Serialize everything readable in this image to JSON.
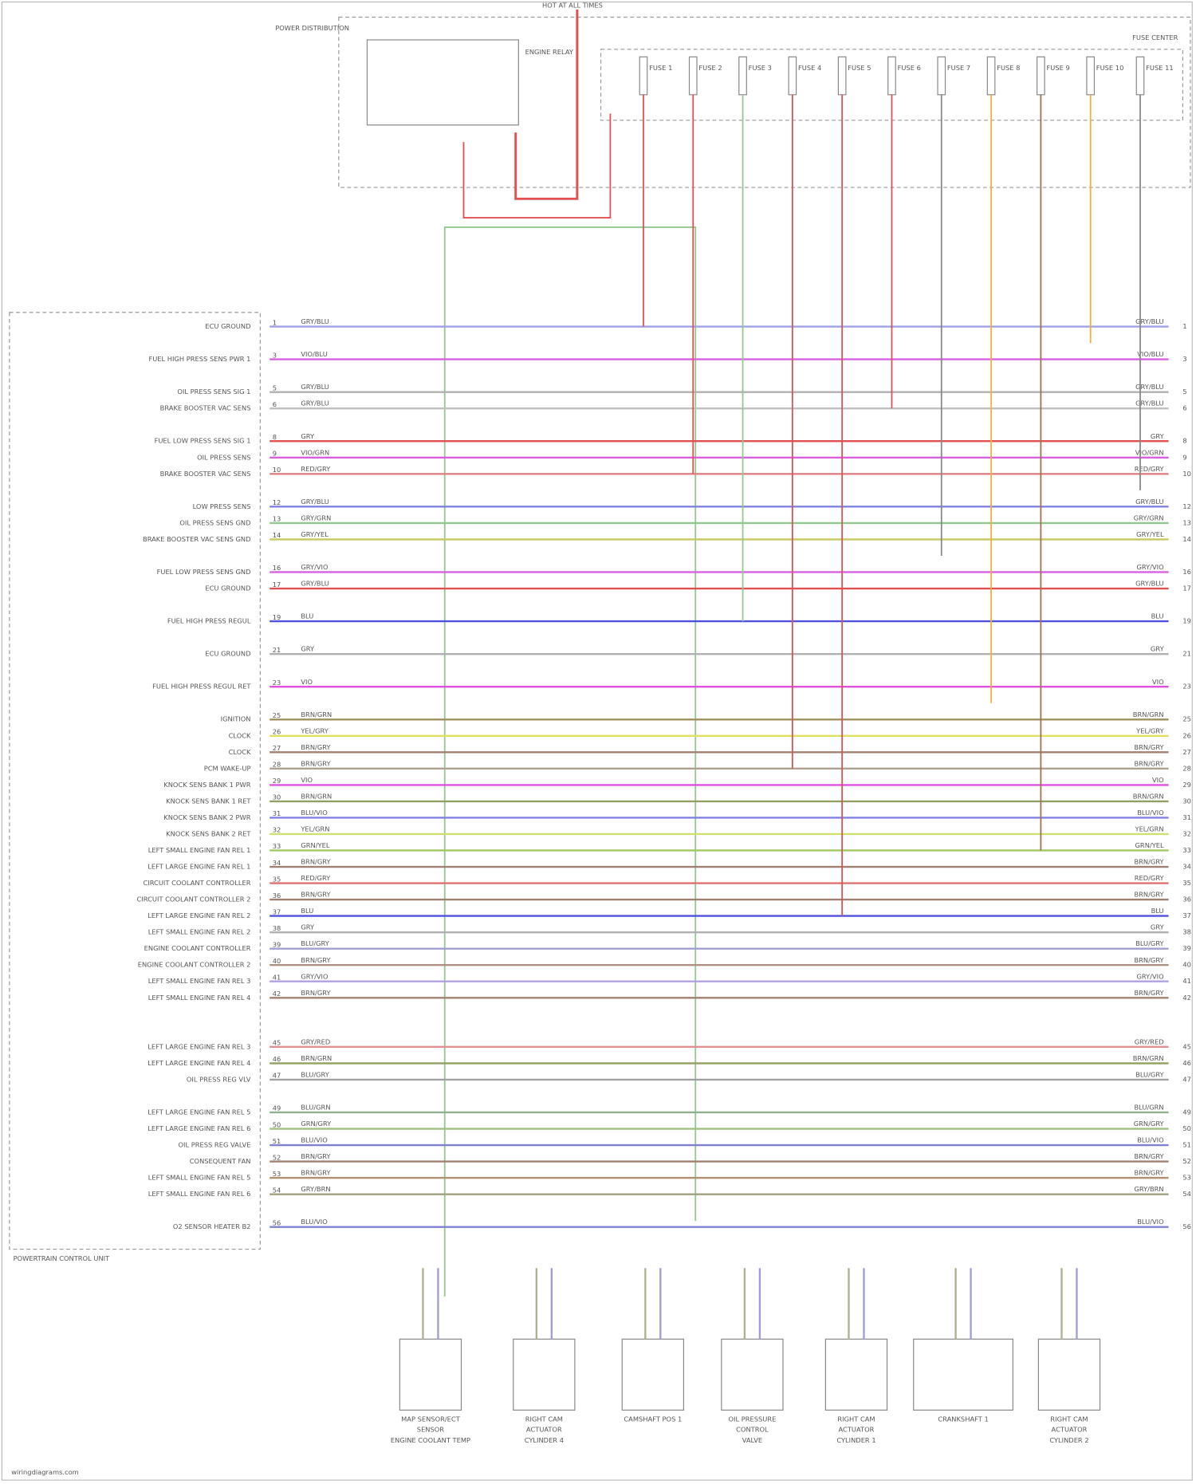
{
  "header": {
    "top_label": "HOT AT ALL TIMES",
    "fuse_box": "POWER DISTRIBUTION",
    "relay": "ENGINE RELAY",
    "fuse_center": "FUSE CENTER"
  },
  "fuses": [
    "FUSE 1",
    "FUSE 2",
    "FUSE 3",
    "FUSE 4",
    "FUSE 5",
    "FUSE 6",
    "FUSE 7",
    "FUSE 8",
    "FUSE 9",
    "FUSE 10",
    "FUSE 11"
  ],
  "fuse_colors": [
    "#e05050",
    "#e05050",
    "#90c890",
    "#e05050",
    "#e05050",
    "#e05050",
    "#888888",
    "#f0b040",
    "#a07050",
    "#f0b040",
    "#888888"
  ],
  "pcm": {
    "title": "POWERTRAIN CONTROL UNIT",
    "pins": [
      {
        "pin": "1",
        "label": "ECU GROUND",
        "wire": "GRY/BLU",
        "color": "#a0a0e8"
      },
      {
        "pin": "3",
        "label": "FUEL HIGH PRESS SENS PWR 1",
        "wire": "VIO/BLU",
        "color": "#d860e0"
      },
      {
        "pin": "5",
        "label": "OIL PRESS SENS SIG 1",
        "wire": "GRY/BLU",
        "color": "#b0b0b0"
      },
      {
        "pin": "6",
        "label": "BRAKE BOOSTER VAC SENS",
        "wire": "GRY/BLU",
        "color": "#c0c0c0"
      },
      {
        "pin": "8",
        "label": "FUEL LOW PRESS SENS SIG 1",
        "wire": "GRY",
        "color": "#e05050"
      },
      {
        "pin": "9",
        "label": "OIL PRESS SENS",
        "wire": "VIO/GRN",
        "color": "#d860e0"
      },
      {
        "pin": "10",
        "label": "BRAKE BOOSTER VAC SENS",
        "wire": "RED/GRY",
        "color": "#e08080"
      },
      {
        "pin": "12",
        "label": "LOW PRESS SENS",
        "wire": "GRY/BLU",
        "color": "#8080e0"
      },
      {
        "pin": "13",
        "label": "OIL PRESS SENS GND",
        "wire": "GRY/GRN",
        "color": "#90c890"
      },
      {
        "pin": "14",
        "label": "BRAKE BOOSTER VAC SENS GND",
        "wire": "GRY/YEL",
        "color": "#c8c860"
      },
      {
        "pin": "16",
        "label": "FUEL LOW PRESS SENS GND",
        "wire": "GRY/VIO",
        "color": "#d860e0"
      },
      {
        "pin": "17",
        "label": "ECU GROUND",
        "wire": "GRY/BLU",
        "color": "#e05050"
      },
      {
        "pin": "19",
        "label": "FUEL HIGH PRESS REGUL",
        "wire": "BLU",
        "color": "#5050e0"
      },
      {
        "pin": "21",
        "label": "ECU GROUND",
        "wire": "GRY",
        "color": "#b0b0b0"
      },
      {
        "pin": "23",
        "label": "FUEL HIGH PRESS REGUL RET",
        "wire": "VIO",
        "color": "#e050e0"
      },
      {
        "pin": "25",
        "label": "IGNITION",
        "wire": "BRN/GRN",
        "color": "#a09060"
      },
      {
        "pin": "26",
        "label": "CLOCK",
        "wire": "YEL/GRY",
        "color": "#e0e060"
      },
      {
        "pin": "27",
        "label": "CLOCK",
        "wire": "BRN/GRY",
        "color": "#a08070"
      },
      {
        "pin": "28",
        "label": "PCM WAKE-UP",
        "wire": "BRN/GRY",
        "color": "#b0a090"
      },
      {
        "pin": "29",
        "label": "KNOCK SENS BANK 1 PWR",
        "wire": "VIO",
        "color": "#e050e0"
      },
      {
        "pin": "30",
        "label": "KNOCK SENS BANK 1 RET",
        "wire": "BRN/GRN",
        "color": "#90a060"
      },
      {
        "pin": "31",
        "label": "KNOCK SENS BANK 2 PWR",
        "wire": "BLU/VIO",
        "color": "#8080e0"
      },
      {
        "pin": "32",
        "label": "KNOCK SENS BANK 2 RET",
        "wire": "YEL/GRN",
        "color": "#d0e070"
      },
      {
        "pin": "33",
        "label": "LEFT SMALL ENGINE FAN REL 1",
        "wire": "GRN/YEL",
        "color": "#a0c860"
      },
      {
        "pin": "34",
        "label": "LEFT LARGE ENGINE FAN REL 1",
        "wire": "BRN/GRY",
        "color": "#a08070"
      },
      {
        "pin": "35",
        "label": "CIRCUIT COOLANT CONTROLLER",
        "wire": "RED/GRY",
        "color": "#e07070"
      },
      {
        "pin": "36",
        "label": "CIRCUIT COOLANT CONTROLLER 2",
        "wire": "BRN/GRY",
        "color": "#a08070"
      },
      {
        "pin": "37",
        "label": "LEFT LARGE ENGINE FAN REL 2",
        "wire": "BLU",
        "color": "#5050e0"
      },
      {
        "pin": "38",
        "label": "LEFT SMALL ENGINE FAN REL 2",
        "wire": "GRY",
        "color": "#b0b0b0"
      },
      {
        "pin": "39",
        "label": "ENGINE COOLANT CONTROLLER",
        "wire": "BLU/GRY",
        "color": "#a0a0d0"
      },
      {
        "pin": "40",
        "label": "ENGINE COOLANT CONTROLLER 2",
        "wire": "BRN/GRY",
        "color": "#b09080"
      },
      {
        "pin": "41",
        "label": "LEFT SMALL ENGINE FAN REL 3",
        "wire": "GRY/VIO",
        "color": "#b0a0e0"
      },
      {
        "pin": "42",
        "label": "LEFT SMALL ENGINE FAN REL 4",
        "wire": "BRN/GRY",
        "color": "#a08070"
      },
      {
        "pin": "45",
        "label": "LEFT LARGE ENGINE FAN REL 3",
        "wire": "GRY/RED",
        "color": "#e09090"
      },
      {
        "pin": "46",
        "label": "LEFT LARGE ENGINE FAN REL 4",
        "wire": "BRN/GRN",
        "color": "#90a060"
      },
      {
        "pin": "47",
        "label": "OIL PRESS REG VLV",
        "wire": "BLU/GRY",
        "color": "#a0a0a0"
      },
      {
        "pin": "49",
        "label": "LEFT LARGE ENGINE FAN REL 5",
        "wire": "BLU/GRN",
        "color": "#90b090"
      },
      {
        "pin": "50",
        "label": "LEFT LARGE ENGINE FAN REL 6",
        "wire": "GRN/GRY",
        "color": "#a0c080"
      },
      {
        "pin": "51",
        "label": "OIL PRESS REG VALVE",
        "wire": "BLU/VIO",
        "color": "#8080d0"
      },
      {
        "pin": "52",
        "label": "CONSEQUENT FAN",
        "wire": "BRN/GRY",
        "color": "#a08070"
      },
      {
        "pin": "53",
        "label": "LEFT SMALL ENGINE FAN REL 5",
        "wire": "BRN/GRY",
        "color": "#b09070"
      },
      {
        "pin": "54",
        "label": "LEFT SMALL ENGINE FAN REL 6",
        "wire": "GRY/BRN",
        "color": "#a0a080"
      },
      {
        "pin": "56",
        "label": "O2 SENSOR HEATER B2",
        "wire": "BLU/VIO",
        "color": "#8080d0"
      }
    ]
  },
  "components": [
    {
      "lines": [
        "MAP SENSOR/ECT",
        "SENSOR",
        "ENGINE COOLANT TEMP"
      ]
    },
    {
      "lines": [
        "RIGHT CAM",
        "ACTUATOR",
        "CYLINDER 4"
      ]
    },
    {
      "lines": [
        "CAMSHAFT POS 1"
      ]
    },
    {
      "lines": [
        "OIL PRESSURE",
        "CONTROL",
        "VALVE"
      ]
    },
    {
      "lines": [
        "RIGHT CAM",
        "ACTUATOR",
        "CYLINDER 1"
      ]
    },
    {
      "lines": [
        "CRANKSHAFT 1"
      ]
    },
    {
      "lines": [
        "RIGHT CAM",
        "ACTUATOR",
        "CYLINDER 2"
      ]
    }
  ],
  "footer": "wiringdiagrams.com"
}
